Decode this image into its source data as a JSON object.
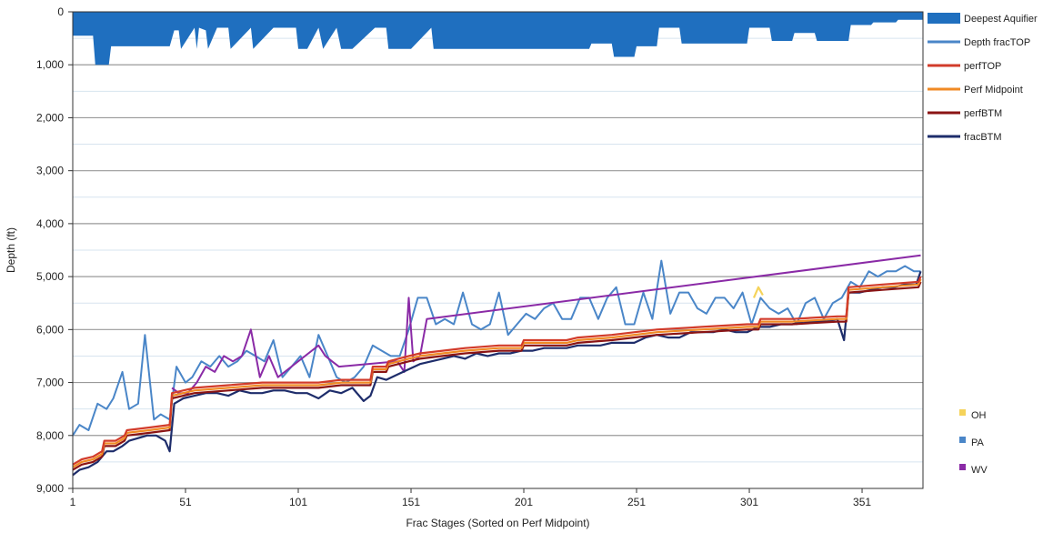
{
  "chart_data": {
    "type": "line",
    "title": "",
    "xlabel": "Frac Stages (Sorted on Perf Midpoint)",
    "ylabel": "Depth (ft)",
    "xlim": [
      1,
      378
    ],
    "ylim": [
      0,
      9000
    ],
    "y_inverted": true,
    "x_ticks": [
      1,
      51,
      101,
      151,
      201,
      251,
      301,
      351
    ],
    "x_tick_labels": [
      "1",
      "51",
      "101",
      "151",
      "201",
      "251",
      "301",
      "351"
    ],
    "y_ticks": [
      0,
      1000,
      2000,
      3000,
      4000,
      5000,
      6000,
      7000,
      8000,
      9000
    ],
    "y_tick_labels": [
      "0",
      "1,000",
      "2,000",
      "3,000",
      "4,000",
      "5,000",
      "6,000",
      "7,000",
      "8,000",
      "9,000"
    ],
    "grid": true,
    "legend_position": "right",
    "series": [
      {
        "name": "Deepest Aquifier",
        "kind": "area",
        "color": "#1f6fbf",
        "x": [
          1,
          10,
          11,
          17,
          18,
          23,
          24,
          30,
          35,
          36,
          44,
          46,
          48,
          49,
          55,
          56,
          57,
          60,
          61,
          65,
          70,
          71,
          80,
          81,
          90,
          95,
          100,
          101,
          105,
          110,
          112,
          118,
          120,
          125,
          135,
          140,
          141,
          150,
          151,
          160,
          161,
          180,
          200,
          210,
          230,
          231,
          240,
          241,
          250,
          251,
          260,
          261,
          270,
          271,
          300,
          301,
          310,
          311,
          320,
          321,
          330,
          331,
          345,
          346,
          355,
          356,
          366,
          367,
          378
        ],
        "y": [
          450,
          450,
          1000,
          1000,
          650,
          650,
          650,
          650,
          650,
          650,
          650,
          350,
          350,
          700,
          300,
          700,
          300,
          350,
          700,
          300,
          300,
          700,
          300,
          700,
          300,
          300,
          300,
          700,
          700,
          300,
          700,
          300,
          700,
          700,
          300,
          300,
          700,
          700,
          700,
          300,
          700,
          700,
          700,
          700,
          700,
          600,
          600,
          850,
          850,
          650,
          650,
          300,
          300,
          600,
          600,
          300,
          300,
          550,
          550,
          400,
          400,
          550,
          550,
          250,
          250,
          200,
          200,
          150,
          150
        ]
      },
      {
        "name": "Depth fracTOP",
        "kind": "line",
        "color": "#4a86c8",
        "x": [
          1,
          4,
          8,
          12,
          16,
          19,
          23,
          26,
          30,
          33,
          37,
          40,
          44,
          47,
          51,
          54,
          58,
          62,
          66,
          70,
          74,
          78,
          82,
          86,
          90,
          94,
          98,
          102,
          106,
          110,
          114,
          118,
          122,
          126,
          130,
          134,
          138,
          142,
          146,
          150,
          154,
          158,
          162,
          166,
          170,
          174,
          178,
          182,
          186,
          190,
          194,
          198,
          202,
          206,
          210,
          214,
          218,
          222,
          226,
          230,
          234,
          238,
          242,
          246,
          250,
          254,
          258,
          262,
          266,
          270,
          274,
          278,
          282,
          286,
          290,
          294,
          298,
          302,
          306,
          310,
          314,
          318,
          322,
          326,
          330,
          334,
          338,
          342,
          346,
          350,
          354,
          358,
          362,
          366,
          370,
          374,
          377
        ],
        "y": [
          8000,
          7800,
          7900,
          7400,
          7500,
          7300,
          6800,
          7500,
          7400,
          6100,
          7700,
          7600,
          7700,
          6700,
          7000,
          6900,
          6600,
          6700,
          6500,
          6700,
          6600,
          6400,
          6500,
          6600,
          6200,
          6900,
          6700,
          6500,
          6900,
          6100,
          6500,
          6900,
          7000,
          6900,
          6700,
          6300,
          6400,
          6500,
          6500,
          6000,
          5400,
          5400,
          5900,
          5800,
          5900,
          5300,
          5900,
          6000,
          5900,
          5300,
          6100,
          5900,
          5700,
          5800,
          5600,
          5500,
          5800,
          5800,
          5400,
          5400,
          5800,
          5400,
          5200,
          5900,
          5900,
          5300,
          5800,
          4700,
          5700,
          5300,
          5300,
          5600,
          5700,
          5400,
          5400,
          5600,
          5300,
          5900,
          5400,
          5600,
          5700,
          5600,
          5900,
          5500,
          5400,
          5800,
          5500,
          5400,
          5100,
          5200,
          4900,
          5000,
          4900,
          4900,
          4800,
          4900,
          4900
        ]
      },
      {
        "name": "perfTOP",
        "kind": "line",
        "color": "#d23b2a",
        "x": [
          1,
          5,
          10,
          14,
          15,
          20,
          24,
          25,
          35,
          44,
          45,
          55,
          70,
          85,
          100,
          110,
          120,
          133,
          134,
          140,
          141,
          150,
          155,
          165,
          175,
          190,
          200,
          201,
          220,
          225,
          240,
          260,
          280,
          300,
          305,
          306,
          320,
          340,
          344,
          345,
          360,
          376,
          377
        ],
        "y": [
          8550,
          8450,
          8400,
          8300,
          8100,
          8100,
          8000,
          7900,
          7850,
          7800,
          7200,
          7100,
          7050,
          7000,
          7000,
          7000,
          6950,
          6950,
          6700,
          6700,
          6600,
          6500,
          6450,
          6400,
          6350,
          6300,
          6300,
          6200,
          6200,
          6150,
          6100,
          6000,
          5950,
          5900,
          5900,
          5800,
          5800,
          5750,
          5750,
          5200,
          5150,
          5100,
          5000
        ]
      },
      {
        "name": "Perf Midpoint",
        "kind": "line",
        "color": "#f08a24",
        "x": [
          1,
          5,
          10,
          14,
          15,
          20,
          24,
          25,
          35,
          44,
          45,
          55,
          70,
          85,
          100,
          110,
          120,
          133,
          134,
          140,
          141,
          150,
          155,
          165,
          175,
          190,
          200,
          201,
          220,
          225,
          240,
          260,
          280,
          300,
          305,
          306,
          320,
          340,
          344,
          345,
          360,
          376,
          377
        ],
        "y": [
          8600,
          8500,
          8450,
          8350,
          8150,
          8150,
          8050,
          7950,
          7900,
          7850,
          7250,
          7150,
          7100,
          7050,
          7050,
          7050,
          7000,
          7000,
          6750,
          6750,
          6650,
          6550,
          6500,
          6450,
          6400,
          6350,
          6350,
          6250,
          6250,
          6200,
          6150,
          6050,
          6000,
          5950,
          5950,
          5850,
          5850,
          5800,
          5800,
          5250,
          5200,
          5150,
          5050
        ]
      },
      {
        "name": "perfBTM",
        "kind": "line",
        "color": "#8b1414",
        "x": [
          1,
          5,
          10,
          14,
          15,
          20,
          24,
          25,
          35,
          44,
          45,
          55,
          70,
          85,
          100,
          110,
          120,
          133,
          134,
          140,
          141,
          150,
          155,
          165,
          175,
          190,
          200,
          201,
          220,
          225,
          240,
          260,
          280,
          300,
          305,
          306,
          320,
          340,
          344,
          345,
          360,
          376,
          377
        ],
        "y": [
          8650,
          8550,
          8500,
          8400,
          8200,
          8200,
          8100,
          8000,
          7950,
          7900,
          7300,
          7200,
          7150,
          7100,
          7100,
          7100,
          7050,
          7050,
          6800,
          6800,
          6700,
          6600,
          6550,
          6500,
          6450,
          6400,
          6400,
          6300,
          6300,
          6250,
          6200,
          6100,
          6050,
          6000,
          6000,
          5900,
          5900,
          5850,
          5850,
          5300,
          5250,
          5200,
          5100
        ]
      },
      {
        "name": "fracBTM",
        "kind": "line",
        "color": "#1e2d6b",
        "x": [
          1,
          4,
          8,
          12,
          16,
          19,
          23,
          26,
          30,
          34,
          38,
          42,
          44,
          46,
          50,
          55,
          60,
          65,
          70,
          75,
          80,
          85,
          90,
          95,
          100,
          105,
          110,
          115,
          120,
          125,
          130,
          133,
          136,
          140,
          145,
          150,
          155,
          160,
          165,
          170,
          175,
          180,
          185,
          190,
          195,
          200,
          205,
          210,
          215,
          220,
          225,
          230,
          235,
          240,
          245,
          250,
          255,
          260,
          265,
          270,
          275,
          280,
          285,
          290,
          295,
          300,
          305,
          310,
          315,
          320,
          325,
          330,
          335,
          340,
          343,
          345,
          350,
          355,
          360,
          365,
          370,
          375,
          377
        ],
        "y": [
          8750,
          8650,
          8600,
          8500,
          8300,
          8300,
          8200,
          8100,
          8050,
          8000,
          8000,
          8100,
          8300,
          7400,
          7300,
          7250,
          7200,
          7200,
          7250,
          7150,
          7200,
          7200,
          7150,
          7150,
          7200,
          7200,
          7300,
          7150,
          7200,
          7100,
          7350,
          7250,
          6900,
          6950,
          6850,
          6750,
          6650,
          6600,
          6550,
          6500,
          6550,
          6450,
          6500,
          6450,
          6450,
          6400,
          6400,
          6350,
          6350,
          6350,
          6300,
          6300,
          6300,
          6250,
          6250,
          6250,
          6150,
          6100,
          6150,
          6150,
          6050,
          6050,
          6050,
          6000,
          6050,
          6050,
          5950,
          5950,
          5900,
          5900,
          5850,
          5850,
          5850,
          5800,
          6200,
          5300,
          5300,
          5250,
          5200,
          5200,
          5150,
          5150,
          4900
        ]
      },
      {
        "name": "OH",
        "kind": "line",
        "color": "#f5d35a",
        "x": [
          303,
          305,
          307
        ],
        "y": [
          5400,
          5200,
          5350
        ]
      },
      {
        "name": "PA",
        "kind": "line",
        "color": "#4a86c8",
        "x": [
          1,
          2
        ],
        "y": [
          8000,
          8000
        ]
      },
      {
        "name": "WV",
        "kind": "line",
        "color": "#8a2aa6",
        "x": [
          45,
          48,
          52,
          56,
          60,
          64,
          68,
          72,
          76,
          80,
          84,
          88,
          92,
          95,
          110,
          113,
          116,
          119,
          145,
          148,
          150,
          152,
          155,
          158,
          377
        ],
        "y": [
          7100,
          7200,
          7200,
          7000,
          6700,
          6800,
          6500,
          6600,
          6500,
          6000,
          6900,
          6500,
          6900,
          6800,
          6300,
          6500,
          6600,
          6700,
          6600,
          6800,
          5400,
          6600,
          6500,
          5800,
          4600
        ]
      }
    ],
    "legend": [
      {
        "label": "Deepest Aquifier",
        "color": "#1f6fbf",
        "kind": "area"
      },
      {
        "label": "Depth fracTOP",
        "color": "#4a86c8",
        "kind": "line"
      },
      {
        "label": "perfTOP",
        "color": "#d23b2a",
        "kind": "line"
      },
      {
        "label": "Perf Midpoint",
        "color": "#f08a24",
        "kind": "line"
      },
      {
        "label": "perfBTM",
        "color": "#8b1414",
        "kind": "line"
      },
      {
        "label": "fracBTM",
        "color": "#1e2d6b",
        "kind": "line"
      }
    ],
    "legend_secondary": [
      {
        "label": "OH",
        "color": "#f5d35a"
      },
      {
        "label": "PA",
        "color": "#4a86c8"
      },
      {
        "label": "WV",
        "color": "#8a2aa6"
      }
    ]
  }
}
